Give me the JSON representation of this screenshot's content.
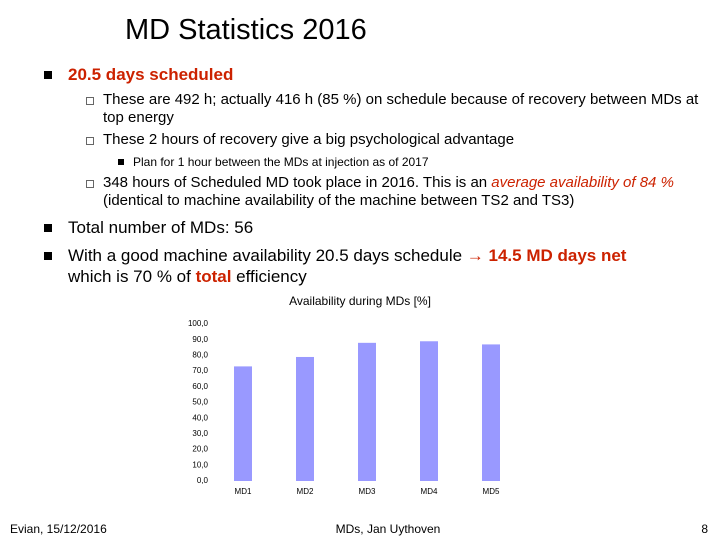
{
  "title": "MD Statistics 2016",
  "items": [
    {
      "runs": [
        "20.5 days scheduled"
      ]
    },
    {
      "runs": [
        "These are 492 h; actually 416 h (85 %) on schedule because of recovery between MDs at top energy"
      ]
    },
    {
      "runs": [
        "These 2 hours of recovery give a big psychological advantage"
      ]
    },
    {
      "runs": [
        "Plan for 1 hour between the MDs at injection as of 2017"
      ]
    },
    {
      "runs": [
        "348 hours of Scheduled MD took place in 2016. This is an ",
        "average availability of 84 %",
        " (identical to machine availability of the machine between TS2 and TS3)"
      ]
    },
    {
      "runs": [
        "Total number of MDs: 56"
      ]
    },
    {
      "runs": [
        "With a good machine availability 20.5 days schedule ",
        "→ 14.5 MD days net",
        "which is 70 % of ",
        "total",
        " efficiency"
      ]
    }
  ],
  "chart_data": {
    "type": "bar",
    "title": "Availability during MDs [%]",
    "categories": [
      "MD1",
      "MD2",
      "MD3",
      "MD4",
      "MD5"
    ],
    "values": [
      73,
      79,
      88,
      89,
      87
    ],
    "color": "#9999ff",
    "ylim": [
      0,
      100
    ],
    "yticks": [
      {
        "value": 0,
        "label": "0,0"
      },
      {
        "value": 10,
        "label": "10,0"
      },
      {
        "value": 20,
        "label": "20,0"
      },
      {
        "value": 30,
        "label": "30,0"
      },
      {
        "value": 40,
        "label": "40,0"
      },
      {
        "value": 50,
        "label": "50,0"
      },
      {
        "value": 60,
        "label": "60,0"
      },
      {
        "value": 70,
        "label": "70,0"
      },
      {
        "value": 80,
        "label": "80,0"
      },
      {
        "value": 90,
        "label": "90,0"
      },
      {
        "value": 100,
        "label": "100,0"
      }
    ],
    "grid": false
  },
  "footer": {
    "left": "Evian, 15/12/2016",
    "center": "MDs, Jan Uythoven",
    "page": "8"
  }
}
